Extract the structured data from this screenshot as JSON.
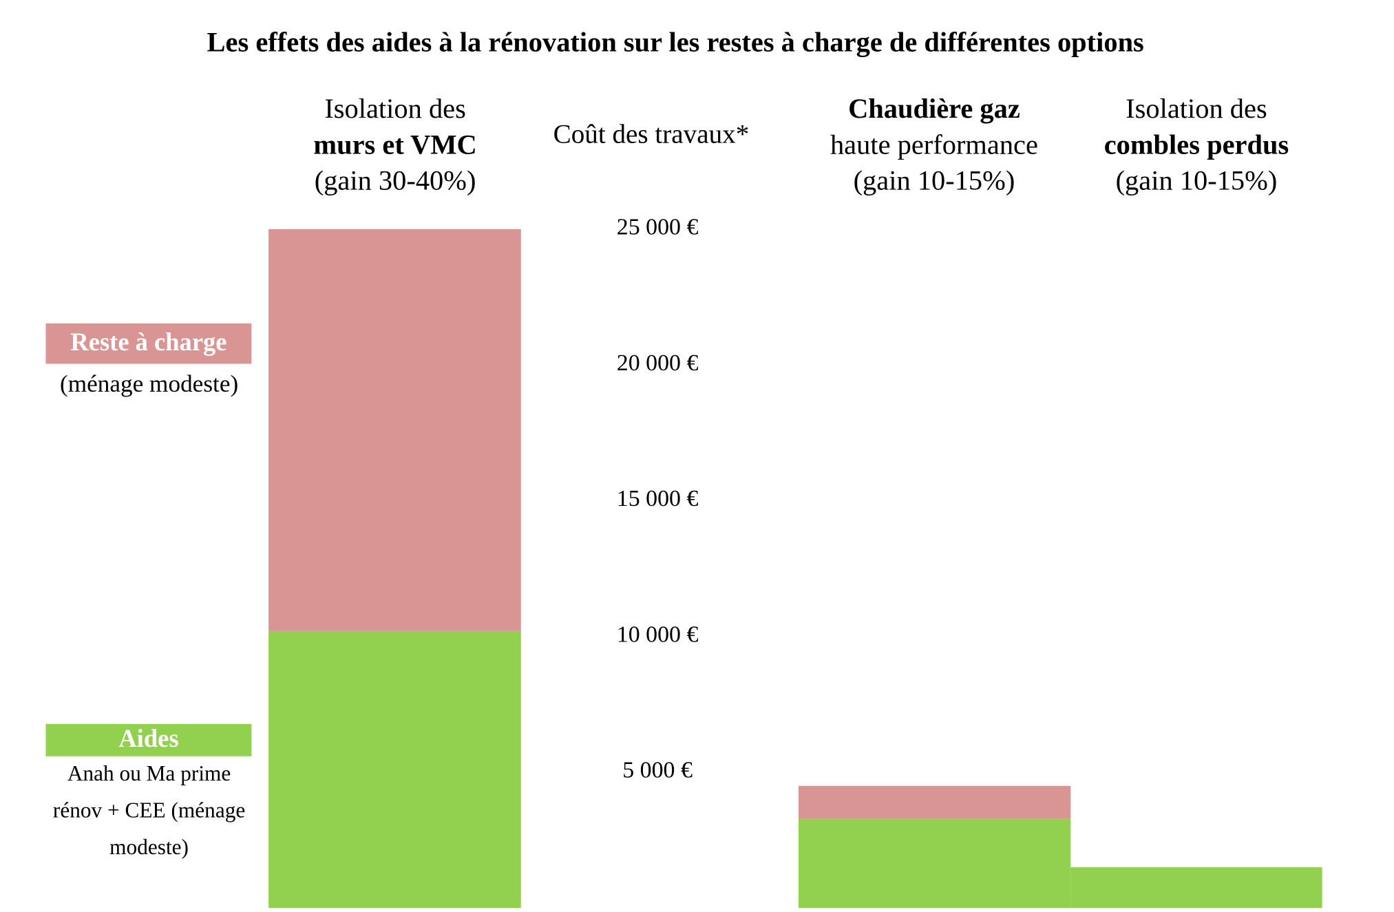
{
  "chart_data": {
    "type": "stacked_bar",
    "title": "Les effets des aides à la rénovation sur les restes à charge de différentes options",
    "y_label": "Coût des travaux*",
    "categories": [
      [
        "Isolation des",
        "murs et VMC",
        "(gain 30-40%)"
      ],
      [
        "Chaudière gaz",
        "haute performance",
        "(gain 10-15%)"
      ],
      [
        "Isolation des",
        "combles perdus",
        "(gain 10-15%)"
      ]
    ],
    "series": [
      {
        "name": "Aides",
        "description": "Anah ou Ma prime rénov + CEE (ménage modeste)",
        "color": "#92d050",
        "values": [
          10200,
          3300,
          1500
        ]
      },
      {
        "name": "Reste à charge",
        "description": "(ménage modeste)",
        "color": "#d99594",
        "values": [
          14800,
          1200,
          0
        ]
      }
    ],
    "ylim": [
      0,
      25000
    ],
    "yticks": [
      {
        "value": 5000,
        "label": "5 000 €"
      },
      {
        "value": 10000,
        "label": "10 000 €"
      },
      {
        "value": 15000,
        "label": "15 000 €"
      },
      {
        "value": 20000,
        "label": "20 000 €"
      },
      {
        "value": 25000,
        "label": "25 000 €"
      }
    ]
  }
}
